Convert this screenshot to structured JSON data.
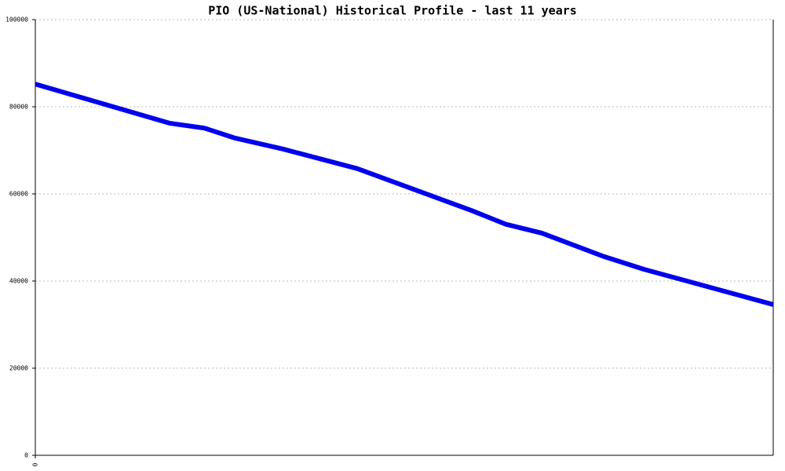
{
  "chart_data": {
    "type": "line",
    "title": "PIO (US-National) Historical Profile - last 11 years",
    "x": [
      0,
      2.01,
      2.52,
      2.98,
      3.69,
      4.8,
      6.5,
      7.02,
      7.55,
      8.48,
      9.07,
      11
    ],
    "series": [
      {
        "name": "PIO",
        "color": "#0000ee",
        "values": [
          85200,
          76200,
          75100,
          72800,
          70300,
          65800,
          56200,
          53000,
          51000,
          45600,
          42700,
          34600
        ]
      }
    ],
    "xlim": [
      0,
      11
    ],
    "xticks": [
      0
    ],
    "ylim": [
      0,
      100000
    ],
    "yticks": [
      0,
      20000,
      40000,
      60000,
      80000,
      100000
    ],
    "grid": true
  }
}
